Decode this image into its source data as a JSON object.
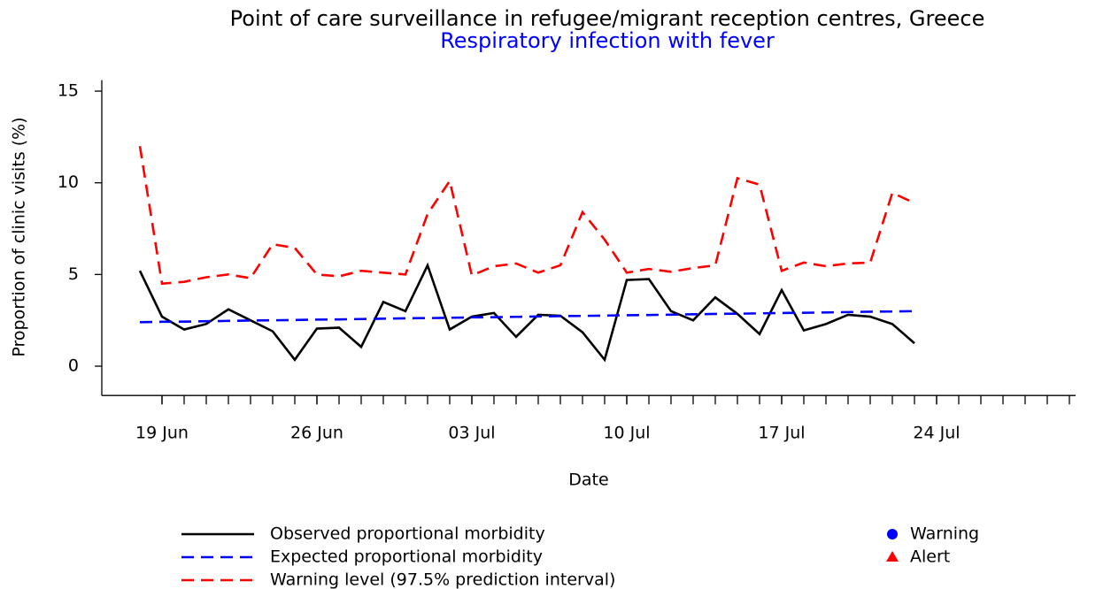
{
  "chart_data": {
    "type": "line",
    "title": "Point of care surveillance in refugee/migrant reception centres, Greece",
    "subtitle": "Respiratory infection with fever",
    "subtitle_color": "#0000ff",
    "x_label": "Date",
    "y_label": "Proportion of clinic visits (%)",
    "x": [
      "18 Jun",
      "19 Jun",
      "20 Jun",
      "21 Jun",
      "22 Jun",
      "23 Jun",
      "24 Jun",
      "25 Jun",
      "26 Jun",
      "27 Jun",
      "28 Jun",
      "29 Jun",
      "30 Jun",
      "01 Jul",
      "02 Jul",
      "03 Jul",
      "04 Jul",
      "05 Jul",
      "06 Jul",
      "07 Jul",
      "08 Jul",
      "09 Jul",
      "10 Jul",
      "11 Jul",
      "12 Jul",
      "13 Jul",
      "14 Jul",
      "15 Jul",
      "16 Jul",
      "17 Jul",
      "18 Jul",
      "19 Jul",
      "20 Jul",
      "21 Jul",
      "22 Jul",
      "23 Jul"
    ],
    "series": [
      {
        "name": "Observed proportional morbidity",
        "color": "#000000",
        "dashed": false,
        "values": [
          5.2,
          2.7,
          2.0,
          2.3,
          3.1,
          2.5,
          1.9,
          0.35,
          2.05,
          2.1,
          1.05,
          3.5,
          3.0,
          5.5,
          2.0,
          2.7,
          2.9,
          1.6,
          2.8,
          2.75,
          1.85,
          0.35,
          4.7,
          4.75,
          3.0,
          2.5,
          3.75,
          2.85,
          1.75,
          4.15,
          1.95,
          2.3,
          2.8,
          2.7,
          2.3,
          1.25
        ]
      },
      {
        "name": "Expected proportional morbidity",
        "color": "#0000ff",
        "dashed": true,
        "values": [
          2.4,
          2.42,
          2.43,
          2.45,
          2.47,
          2.49,
          2.5,
          2.52,
          2.54,
          2.55,
          2.57,
          2.59,
          2.61,
          2.62,
          2.64,
          2.66,
          2.67,
          2.69,
          2.71,
          2.73,
          2.74,
          2.76,
          2.78,
          2.79,
          2.81,
          2.83,
          2.85,
          2.86,
          2.88,
          2.9,
          2.91,
          2.93,
          2.95,
          2.97,
          2.98,
          3.0
        ]
      },
      {
        "name": "Warning level (97.5% prediction interval)",
        "color": "#ff0000",
        "dashed": true,
        "values": [
          12.0,
          4.5,
          4.6,
          4.85,
          5.0,
          4.8,
          6.65,
          6.45,
          5.0,
          4.9,
          5.2,
          5.1,
          5.0,
          8.3,
          10.1,
          4.95,
          5.45,
          5.6,
          5.1,
          5.5,
          8.4,
          6.9,
          5.1,
          5.3,
          5.15,
          5.35,
          5.5,
          10.25,
          9.9,
          5.2,
          5.65,
          5.45,
          5.6,
          5.65,
          9.45,
          8.9
        ]
      }
    ],
    "legend_markers": [
      {
        "name": "Warning",
        "color": "#0000ff",
        "marker": "circle"
      },
      {
        "name": "Alert",
        "color": "#ff0000",
        "marker": "triangle"
      }
    ],
    "xlim": [
      "16 Jun",
      "30 Jul"
    ],
    "xticks": [
      "19 Jun",
      "26 Jun",
      "03 Jul",
      "10 Jul",
      "17 Jul",
      "24 Jul"
    ],
    "ylim": [
      -1.6,
      15.6
    ],
    "yticks": [
      0,
      5,
      10,
      15
    ]
  }
}
